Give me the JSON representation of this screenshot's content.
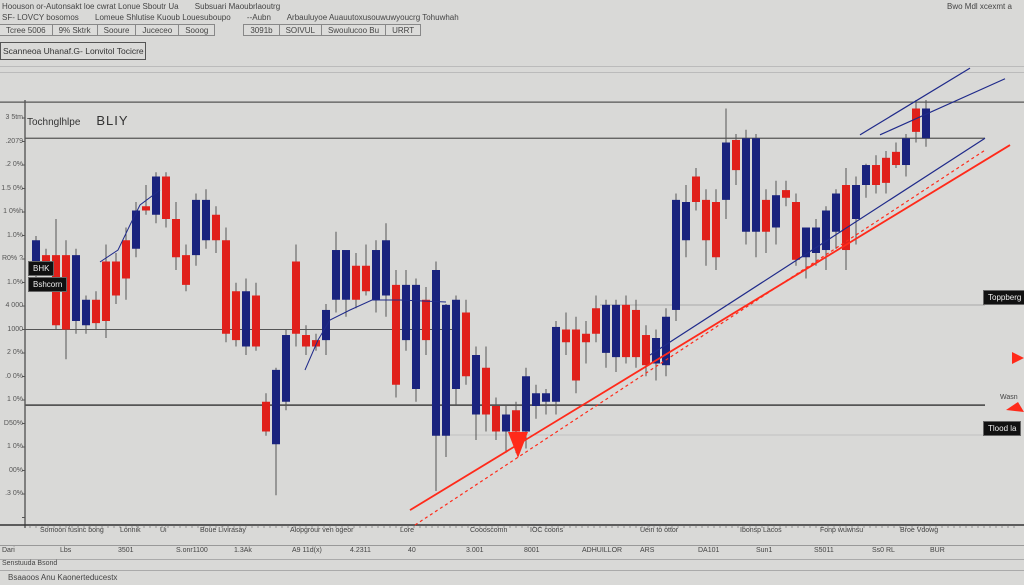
{
  "toolbar": {
    "row1": [
      "Hoouson or-Autonsakt loe cwrat Lonue Sboutr Ua",
      "Subsuari Maoubrlaoutrg",
      "Bwo Mdl xcexmt a"
    ],
    "row2": [
      "SF- LOVCY bosomos",
      "Lomeue Shlutise Kuoub Louesuboupo",
      "--Aubn",
      "Arbauluyoe Auauutoxusouwuwyoucrg Tohuwhah"
    ],
    "cells": [
      "Tcree 5006",
      "9% Sktrk",
      "Sooure",
      "Juceceo",
      "Sooog",
      "3091b",
      "SOIVUL",
      "Swoulucoo Bu",
      "URRT"
    ],
    "panel_button": "Scanneoa Uhanaf.G- Lonvitol Tocicre"
  },
  "chart_title": {
    "name": "Tochnglhlpe",
    "symbol": "BLIY"
  },
  "y_tick_labels": [
    "3 5tm",
    ".2079",
    ".2 0%",
    "1.5 0%",
    "1 0%h",
    "1.0%",
    "R0% ?",
    "1.0%",
    "4 000",
    "1000",
    "2 0%",
    ".0 0%",
    "1 0%",
    "D50%",
    "1 0%",
    "00%",
    ".3 0%"
  ],
  "left_tags": [
    "BHK",
    "Bshcorn"
  ],
  "right_tags": [
    "Toppberg",
    "Tlood la"
  ],
  "right_note": "Wasn",
  "x_axis_labels": [
    "Somoon fusinc bong",
    "Lonnik",
    "Ui",
    "Boue Livirasay",
    "Alopgrour ven ogeor",
    "Lore",
    "Coooscomn",
    "IOC coons",
    "Uein to ottor",
    "Ibonsp Lacos",
    "Fonp wuwnsu",
    "Broe Vdowg"
  ],
  "bottom_row": [
    "Dari",
    "Lbs",
    "3501",
    "S.onr1100",
    "1.3Ak",
    "A9 11d(x)",
    "4.2311",
    "40",
    "3.001",
    "8001",
    "ADHUILLOR",
    "ARS",
    "DA101",
    "Sun1",
    "S5011",
    "Ss0 RL",
    "BUR"
  ],
  "bottom_status_1": "Senstuuda Bsond",
  "bottom_status_2": "Bsaaoos Anu Kaonerteducestx",
  "chart_data": {
    "type": "candlestick",
    "title": "BLIY",
    "ylim": [
      0,
      100
    ],
    "grid": false,
    "colors": {
      "up": "#1a237e",
      "down": "#e0201b",
      "trend_up": "#ff2a1a",
      "channel": "#1f2a8a",
      "level": "#555555"
    },
    "candles_ohlc": [
      [
        59,
        68,
        56,
        67
      ],
      [
        63.5,
        65,
        59,
        60
      ],
      [
        63.5,
        72,
        46,
        47
      ],
      [
        63.5,
        67,
        39,
        46
      ],
      [
        48,
        65,
        45,
        63.5
      ],
      [
        47,
        54,
        45,
        53
      ],
      [
        53,
        55,
        46,
        47.5
      ],
      [
        62,
        66,
        44,
        48
      ],
      [
        62,
        64,
        52,
        54
      ],
      [
        67,
        70,
        53,
        58
      ],
      [
        65,
        76,
        63,
        74
      ],
      [
        75,
        80,
        73,
        74
      ],
      [
        73,
        83,
        71,
        82
      ],
      [
        82,
        83,
        70,
        72
      ],
      [
        72,
        76,
        60,
        63
      ],
      [
        63.5,
        66,
        55,
        56.5
      ],
      [
        63.5,
        78,
        61,
        76.5
      ],
      [
        67,
        79,
        65,
        76.5
      ],
      [
        73,
        75,
        64,
        67
      ],
      [
        67,
        70,
        43,
        45
      ],
      [
        55,
        57,
        42,
        43.5
      ],
      [
        42,
        58,
        40,
        55
      ],
      [
        54,
        57,
        41,
        42
      ],
      [
        29,
        31,
        21,
        22
      ],
      [
        19,
        37,
        7,
        36.5
      ],
      [
        29,
        46,
        27,
        44.7
      ],
      [
        62,
        66,
        42,
        45
      ],
      [
        44.7,
        47,
        40,
        42
      ],
      [
        43.5,
        45,
        41,
        42
      ],
      [
        43.5,
        52,
        40,
        50.6
      ],
      [
        53,
        69,
        50,
        64.7
      ],
      [
        53,
        63,
        49,
        64.7
      ],
      [
        61,
        64,
        51,
        53
      ],
      [
        61,
        66,
        54,
        55
      ],
      [
        53,
        67,
        50,
        64.7
      ],
      [
        54,
        71,
        49,
        67
      ],
      [
        56.5,
        60,
        30,
        33
      ],
      [
        43.5,
        60,
        41,
        56.5
      ],
      [
        32,
        58,
        29,
        56.5
      ],
      [
        53,
        56,
        40,
        43.5
      ],
      [
        21,
        62,
        8,
        60
      ],
      [
        21,
        52,
        16,
        51.8
      ],
      [
        32,
        54,
        28,
        53
      ],
      [
        50,
        53,
        33,
        35
      ],
      [
        26,
        42,
        20,
        40
      ],
      [
        37,
        42,
        22,
        26
      ],
      [
        28,
        30,
        20,
        22
      ],
      [
        22,
        28,
        17,
        26
      ],
      [
        27,
        29,
        17,
        22
      ],
      [
        22,
        37,
        18,
        35
      ],
      [
        28,
        33,
        25,
        31
      ],
      [
        29,
        32,
        26,
        31
      ],
      [
        29,
        48,
        26,
        46.6
      ],
      [
        46,
        50,
        40,
        43
      ],
      [
        46,
        49,
        31,
        34
      ],
      [
        45,
        48,
        38,
        43
      ],
      [
        51,
        54,
        43,
        45
      ],
      [
        40.5,
        53,
        37,
        51.8
      ],
      [
        39.5,
        53,
        36,
        51.8
      ],
      [
        51.8,
        54,
        38,
        39.5
      ],
      [
        50.6,
        53,
        37,
        39.5
      ],
      [
        44.7,
        47,
        35,
        37.6
      ],
      [
        38,
        46,
        34,
        44
      ],
      [
        37.6,
        51,
        35,
        49
      ],
      [
        50.6,
        78,
        48,
        76.5
      ],
      [
        67,
        80,
        63,
        76
      ],
      [
        82,
        84,
        74,
        76
      ],
      [
        76.5,
        79,
        61,
        67
      ],
      [
        76,
        79,
        60,
        63
      ],
      [
        76.5,
        98,
        72,
        90
      ],
      [
        90.6,
        92,
        80,
        83.5
      ],
      [
        69,
        93,
        66,
        91
      ],
      [
        69,
        92,
        63,
        91
      ],
      [
        76.5,
        79,
        64,
        69
      ],
      [
        70,
        81,
        66,
        77.6
      ],
      [
        78.8,
        81,
        75,
        77
      ],
      [
        76,
        78,
        61,
        62.4
      ],
      [
        63,
        70,
        58,
        70
      ],
      [
        64,
        72,
        61,
        70
      ],
      [
        64.7,
        75,
        60,
        74
      ],
      [
        69,
        79,
        65,
        78
      ],
      [
        80,
        84,
        60,
        64.7
      ],
      [
        72,
        82,
        66,
        80
      ],
      [
        80,
        85,
        77,
        84.7
      ],
      [
        84.7,
        87,
        78,
        80
      ],
      [
        86.4,
        88,
        78,
        80.5
      ],
      [
        87.8,
        90,
        84,
        84.7
      ],
      [
        84.7,
        92,
        82,
        91
      ],
      [
        98,
        100,
        90,
        92.5
      ],
      [
        91,
        100,
        89,
        98
      ]
    ],
    "horizontal_levels": [
      99.5,
      91,
      46,
      28.2
    ],
    "trendlines": [
      {
        "style": "solid-red",
        "from": [
          37.4,
          3.5
        ],
        "to": [
          97.4,
          89.4
        ]
      },
      {
        "style": "dashed-red",
        "from": [
          37.9,
          0
        ],
        "to": [
          94.9,
          88.2
        ]
      },
      {
        "style": "solid-blue",
        "from": [
          61.4,
          40
        ],
        "to": [
          94.9,
          91
        ]
      },
      {
        "style": "solid-blue",
        "from": [
          82.4,
          91.8
        ],
        "to": [
          93.4,
          107.5
        ]
      },
      {
        "style": "solid-blue",
        "from": [
          84.4,
          91.8
        ],
        "to": [
          96.9,
          105
        ]
      }
    ]
  }
}
